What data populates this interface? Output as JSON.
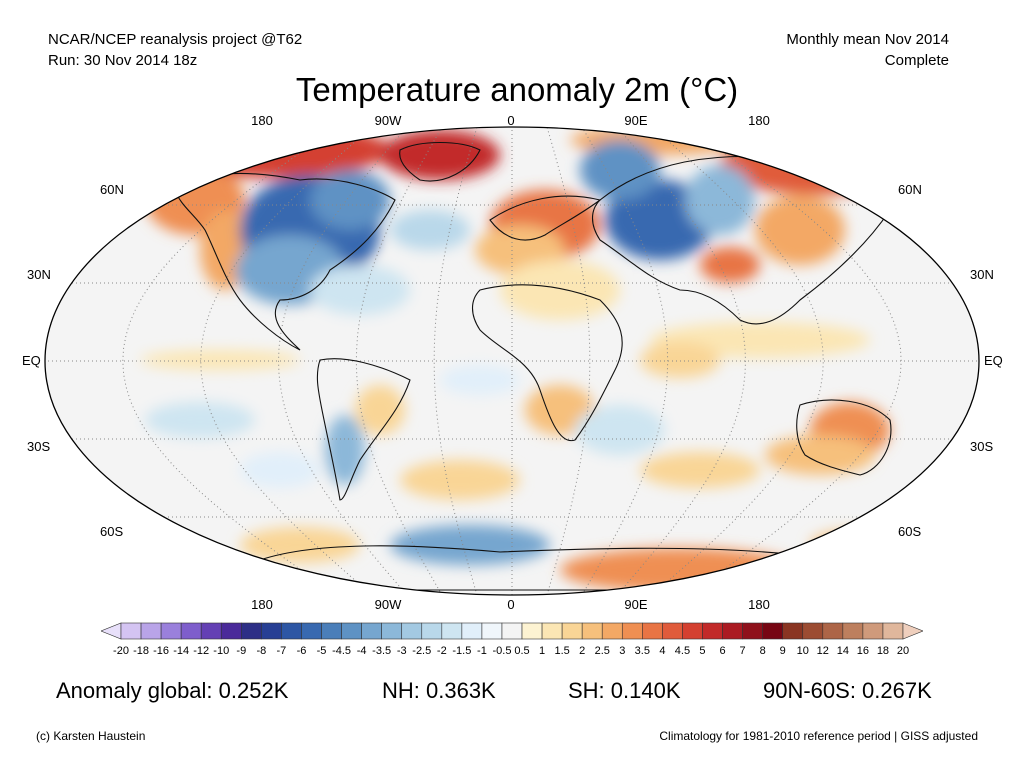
{
  "header": {
    "source_line": "NCAR/NCEP reanalysis project @T62",
    "run_line": "Run: 30 Nov 2014 18z",
    "period_line": "Monthly mean Nov 2014",
    "status_line": "Complete"
  },
  "title": "Temperature anomaly 2m (°C)",
  "map": {
    "projection": "Robinson",
    "longitude_labels": [
      "180",
      "90W",
      "0",
      "90E",
      "180"
    ],
    "latitude_labels": [
      "60N",
      "30N",
      "EQ",
      "30S",
      "60S"
    ],
    "grid": "dotted"
  },
  "colorbar": {
    "tick_labels": [
      "-20",
      "-18",
      "-16",
      "-14",
      "-12",
      "-10",
      "-9",
      "-8",
      "-7",
      "-6",
      "-5",
      "-4.5",
      "-4",
      "-3.5",
      "-3",
      "-2.5",
      "-2",
      "-1.5",
      "-1",
      "-0.5",
      "0.5",
      "1",
      "1.5",
      "2",
      "2.5",
      "3",
      "3.5",
      "4",
      "4.5",
      "5",
      "6",
      "7",
      "8",
      "9",
      "10",
      "12",
      "14",
      "16",
      "18",
      "20"
    ],
    "colors": [
      "#e8e0fa",
      "#d4c4f2",
      "#b9a4e8",
      "#9a80dc",
      "#7e5ecc",
      "#6440b4",
      "#4a2a9a",
      "#2d2f86",
      "#273f94",
      "#2d56a4",
      "#3869b0",
      "#4a7eb9",
      "#5e92c4",
      "#76a6cf",
      "#8cb8d9",
      "#a3c9e2",
      "#b9d8ea",
      "#cee5f1",
      "#e1effa",
      "#f0f6fb",
      "#f4f4f4",
      "#fdf3d2",
      "#fbe6b4",
      "#f9d596",
      "#f6c07c",
      "#f3a865",
      "#ef8f52",
      "#e87444",
      "#e05b3b",
      "#d44030",
      "#c22a29",
      "#ab1b22",
      "#8f111b",
      "#770613",
      "#8a3522",
      "#9c4c32",
      "#ad6547",
      "#bd7f5e",
      "#cf9a7b",
      "#e0b79c",
      "#efcfbd"
    ]
  },
  "stats": {
    "global": "Anomaly global: 0.252K",
    "nh": "NH: 0.363K",
    "sh": "SH: 0.140K",
    "polar": "90N-60S: 0.267K"
  },
  "footer": {
    "credit": "(c) Karsten Haustein",
    "note": "Climatology for 1981-2010 reference period | GISS adjusted"
  }
}
